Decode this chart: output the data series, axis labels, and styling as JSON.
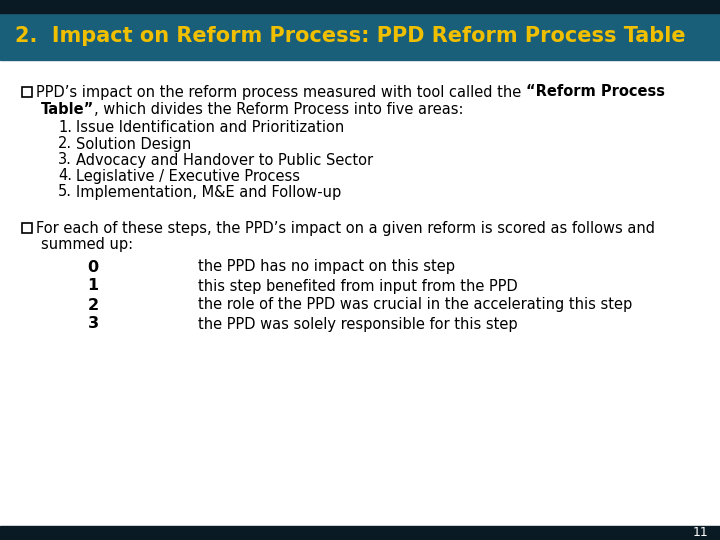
{
  "title": "2.  Impact on Reform Process: PPD Reform Process Table",
  "title_bg_color": "#1a5f7a",
  "title_text_color": "#f0c000",
  "header_bar_color": "#0a1a25",
  "body_bg_color": "#ffffff",
  "footer_bar_color": "#0a1a25",
  "page_number": "11",
  "numbered_items": [
    "Issue Identification and Prioritization",
    "Solution Design",
    "Advocacy and Handover to Public Sector",
    "Legislative / Executive Process",
    "Implementation, M&E and Follow-up"
  ],
  "score_items": [
    [
      "0",
      "the PPD has no impact on this step"
    ],
    [
      "1",
      "this step benefited from input from the PPD"
    ],
    [
      "2",
      "the role of the PPD was crucial in the accelerating this step"
    ],
    [
      "3",
      "the PPD was solely responsible for this step"
    ]
  ],
  "title_fontsize": 15,
  "body_fontsize": 10.5,
  "checkbox_size": 10,
  "bullet1_line1_normal": "PPD’s impact on the reform process measured with tool called the “Reform Process",
  "bullet1_line1_bold_start": "PPD’s impact on the reform process measured with tool called the ",
  "bullet1_line1_bold_part": "“Reform Process",
  "bullet1_line2_bold": "Table”",
  "bullet1_line2_normal": ", which divides the Reform Process into five areas:",
  "bullet2_line1": "For each of these steps, the PPD’s impact on a given reform is scored as follows and",
  "bullet2_line2": "summed up:"
}
